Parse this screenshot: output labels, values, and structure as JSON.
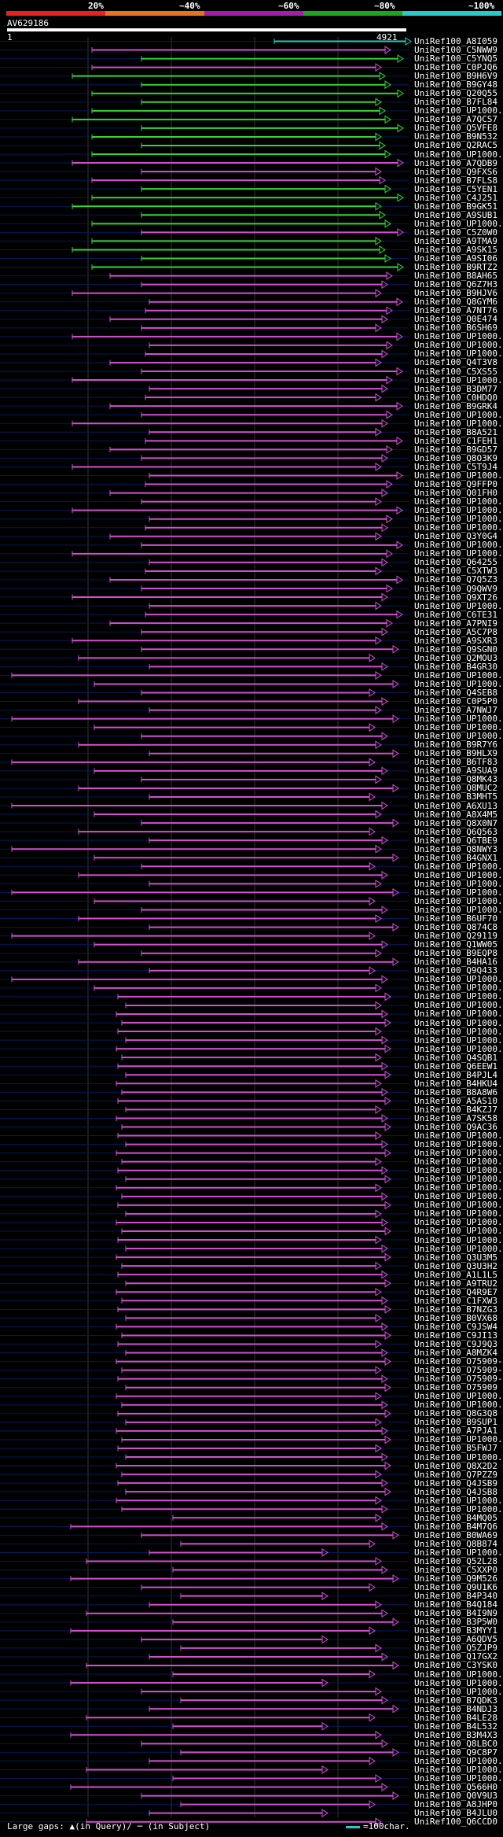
{
  "legend": {
    "labels": [
      "20%",
      "~40%",
      "~60%",
      "~80%",
      "~100%"
    ],
    "colors": [
      "#e8211e",
      "#e8721e",
      "#a21eaa",
      "#1ea41e",
      "#29c9c9"
    ]
  },
  "query": {
    "title": "AV629186",
    "start": "1",
    "end": "4921"
  },
  "footer": {
    "gaps_text": "Large gaps: ▲(in Query)/ ─ (in Subject)",
    "scale_text": "=100char."
  },
  "colors": {
    "magenta": "#d24fd2",
    "green": "#33d633",
    "cyan": "#29c9c9",
    "gap": "#ffffff",
    "grid": "#333333",
    "band": "#001a5a"
  },
  "hits": [
    {
      "id": "UniRef100_A8I059",
      "color": "cyan"
    },
    {
      "id": "UniRef100_C5NWW9",
      "color": "magenta"
    },
    {
      "id": "UniRef100_C5YNQ5",
      "color": "green"
    },
    {
      "id": "UniRef100_C0PJQ6",
      "color": "magenta"
    },
    {
      "id": "UniRef100_B9H6V9",
      "color": "green"
    },
    {
      "id": "UniRef100_B9GY48",
      "color": "green"
    },
    {
      "id": "UniRef100_Q20Q55",
      "color": "green"
    },
    {
      "id": "UniRef100_B7FL84",
      "color": "green"
    },
    {
      "id": "UniRef100_UP1000...",
      "color": "green"
    },
    {
      "id": "UniRef100_A7QCS7",
      "color": "green"
    },
    {
      "id": "UniRef100_Q5VFE8",
      "color": "green"
    },
    {
      "id": "UniRef100_B9N532",
      "color": "green"
    },
    {
      "id": "UniRef100_Q2RAC5",
      "color": "green"
    },
    {
      "id": "UniRef100_UP1000...",
      "color": "green"
    },
    {
      "id": "UniRef100_A7QDB9",
      "color": "magenta"
    },
    {
      "id": "UniRef100_Q9FXS6",
      "color": "magenta"
    },
    {
      "id": "UniRef100_B7FLS8",
      "color": "magenta"
    },
    {
      "id": "UniRef100_C5YEN1",
      "color": "green"
    },
    {
      "id": "UniRef100_C4J251",
      "color": "green"
    },
    {
      "id": "UniRef100_B9GK51",
      "color": "green"
    },
    {
      "id": "UniRef100_A9SUB1",
      "color": "green"
    },
    {
      "id": "UniRef100_UP1000...",
      "color": "green"
    },
    {
      "id": "UniRef100_C5Z0W0",
      "color": "magenta"
    },
    {
      "id": "UniRef100_A9TMA9",
      "color": "green"
    },
    {
      "id": "UniRef100_A9SK15",
      "color": "green"
    },
    {
      "id": "UniRef100_A9SI06",
      "color": "green"
    },
    {
      "id": "UniRef100_B9RTZ2",
      "color": "green"
    },
    {
      "id": "UniRef100_B8AH65",
      "color": "magenta"
    },
    {
      "id": "UniRef100_Q6Z7H3",
      "color": "magenta"
    },
    {
      "id": "UniRef100_B9HJV6",
      "color": "magenta"
    },
    {
      "id": "UniRef100_Q8GYM6",
      "color": "magenta"
    },
    {
      "id": "UniRef100_A7NT76",
      "color": "magenta"
    },
    {
      "id": "UniRef100_Q0E474",
      "color": "magenta"
    },
    {
      "id": "UniRef100_B6SH69",
      "color": "magenta"
    },
    {
      "id": "UniRef100_UP1000...",
      "color": "magenta"
    },
    {
      "id": "UniRef100_UP1000...",
      "color": "magenta"
    },
    {
      "id": "UniRef100_UP1000...",
      "color": "magenta"
    },
    {
      "id": "UniRef100_Q4T3V8",
      "color": "magenta"
    },
    {
      "id": "UniRef100_C5XS55",
      "color": "magenta"
    },
    {
      "id": "UniRef100_UP1000...",
      "color": "magenta"
    },
    {
      "id": "UniRef100_B3DM77",
      "color": "magenta"
    },
    {
      "id": "UniRef100_C0HDQ0",
      "color": "magenta"
    },
    {
      "id": "UniRef100_B9GRK4",
      "color": "magenta"
    },
    {
      "id": "UniRef100_UP1000...",
      "color": "magenta"
    },
    {
      "id": "UniRef100_UP1000...",
      "color": "magenta"
    },
    {
      "id": "UniRef100_B8A521",
      "color": "magenta"
    },
    {
      "id": "UniRef100_C1FEH1",
      "color": "magenta"
    },
    {
      "id": "UniRef100_B9GD57",
      "color": "magenta"
    },
    {
      "id": "UniRef100_Q8O3K9",
      "color": "magenta"
    },
    {
      "id": "UniRef100_C5T9J4",
      "color": "magenta"
    },
    {
      "id": "UniRef100_UP1000...",
      "color": "magenta"
    },
    {
      "id": "UniRef100_Q9FFP0",
      "color": "magenta"
    },
    {
      "id": "UniRef100_Q01FH0",
      "color": "magenta"
    },
    {
      "id": "UniRef100_UP1000...",
      "color": "magenta"
    },
    {
      "id": "UniRef100_UP1000...",
      "color": "magenta"
    },
    {
      "id": "UniRef100_UP1000...",
      "color": "magenta"
    },
    {
      "id": "UniRef100_UP1000...",
      "color": "magenta"
    },
    {
      "id": "UniRef100_Q3Y0G4",
      "color": "magenta"
    },
    {
      "id": "UniRef100_UP1000...",
      "color": "magenta"
    },
    {
      "id": "UniRef100_UP1000...",
      "color": "magenta"
    },
    {
      "id": "UniRef100_Q64255",
      "color": "magenta"
    },
    {
      "id": "UniRef100_C5XTW3",
      "color": "magenta"
    },
    {
      "id": "UniRef100_Q7Q5Z3",
      "color": "magenta"
    },
    {
      "id": "UniRef100_Q9QWV9",
      "color": "magenta"
    },
    {
      "id": "UniRef100_Q9XT26",
      "color": "magenta"
    },
    {
      "id": "UniRef100_UP1000...",
      "color": "magenta"
    },
    {
      "id": "UniRef100_C6TE31",
      "color": "magenta"
    },
    {
      "id": "UniRef100_A7PNI9",
      "color": "magenta"
    },
    {
      "id": "UniRef100_A5C7P8",
      "color": "magenta"
    },
    {
      "id": "UniRef100_A9SXR3",
      "color": "magenta"
    },
    {
      "id": "UniRef100_Q9SGN0",
      "color": "magenta"
    },
    {
      "id": "UniRef100_Q2MOU3",
      "color": "magenta"
    },
    {
      "id": "UniRef100_B4GR30",
      "color": "magenta"
    },
    {
      "id": "UniRef100_UP1000...",
      "color": "magenta"
    },
    {
      "id": "UniRef100_UP1000...",
      "color": "magenta"
    },
    {
      "id": "UniRef100_Q4SEB8",
      "color": "magenta"
    },
    {
      "id": "UniRef100_C0P5P0",
      "color": "magenta"
    },
    {
      "id": "UniRef100_A7NWJ7",
      "color": "magenta"
    },
    {
      "id": "UniRef100_UP1000...",
      "color": "magenta"
    },
    {
      "id": "UniRef100_UP1000...",
      "color": "magenta"
    },
    {
      "id": "UniRef100_UP1000...",
      "color": "magenta"
    },
    {
      "id": "UniRef100_B9R7Y6",
      "color": "magenta"
    },
    {
      "id": "UniRef100_B9HLX9",
      "color": "magenta"
    },
    {
      "id": "UniRef100_B6TF83",
      "color": "magenta"
    },
    {
      "id": "UniRef100_A9SUA9",
      "color": "magenta"
    },
    {
      "id": "UniRef100_Q8MK43",
      "color": "magenta"
    },
    {
      "id": "UniRef100_Q8MUC2",
      "color": "magenta"
    },
    {
      "id": "UniRef100_B3MHT5",
      "color": "magenta"
    },
    {
      "id": "UniRef100_A6XU13",
      "color": "magenta"
    },
    {
      "id": "UniRef100_A8X4M5",
      "color": "magenta"
    },
    {
      "id": "UniRef100_Q8X0N7",
      "color": "magenta"
    },
    {
      "id": "UniRef100_Q6Q563",
      "color": "magenta"
    },
    {
      "id": "UniRef100_Q6TBE9",
      "color": "magenta"
    },
    {
      "id": "UniRef100_Q8NWY3",
      "color": "magenta"
    },
    {
      "id": "UniRef100_B4GNX1",
      "color": "magenta"
    },
    {
      "id": "UniRef100_UP1000...",
      "color": "magenta"
    },
    {
      "id": "UniRef100_UP1000...",
      "color": "magenta"
    },
    {
      "id": "UniRef100_UP1000...",
      "color": "magenta"
    },
    {
      "id": "UniRef100_UP1000...",
      "color": "magenta"
    },
    {
      "id": "UniRef100_UP1000...",
      "color": "magenta"
    },
    {
      "id": "UniRef100_UP1000...",
      "color": "magenta"
    },
    {
      "id": "UniRef100_B6UF70",
      "color": "magenta"
    },
    {
      "id": "UniRef100_Q874C8",
      "color": "magenta"
    },
    {
      "id": "UniRef100_Q29119",
      "color": "magenta"
    },
    {
      "id": "UniRef100_Q1WW05",
      "color": "magenta"
    },
    {
      "id": "UniRef100_B9EQP8",
      "color": "magenta"
    },
    {
      "id": "UniRef100_B4HA16",
      "color": "magenta"
    },
    {
      "id": "UniRef100_Q9Q433",
      "color": "magenta"
    },
    {
      "id": "UniRef100_UP1000...",
      "color": "magenta"
    },
    {
      "id": "UniRef100_UP1000...",
      "color": "magenta"
    },
    {
      "id": "UniRef100_UP1000...",
      "color": "magenta"
    },
    {
      "id": "UniRef100_UP1000...",
      "color": "magenta"
    },
    {
      "id": "UniRef100_UP1000...",
      "color": "magenta"
    },
    {
      "id": "UniRef100_UP1000...",
      "color": "magenta"
    },
    {
      "id": "UniRef100_UP1000...",
      "color": "magenta"
    },
    {
      "id": "UniRef100_UP1000...",
      "color": "magenta"
    },
    {
      "id": "UniRef100_UP1000...",
      "color": "magenta"
    },
    {
      "id": "UniRef100_Q4SQB1",
      "color": "magenta"
    },
    {
      "id": "UniRef100_Q6EEW1",
      "color": "magenta"
    },
    {
      "id": "UniRef100_B4PJL4",
      "color": "magenta"
    },
    {
      "id": "UniRef100_B4HKU4",
      "color": "magenta"
    },
    {
      "id": "UniRef100_B8A8W6",
      "color": "magenta"
    },
    {
      "id": "UniRef100_A5AS10",
      "color": "magenta"
    },
    {
      "id": "UniRef100_B4KZJ7",
      "color": "magenta"
    },
    {
      "id": "UniRef100_A7SK58",
      "color": "magenta"
    },
    {
      "id": "UniRef100_Q9AC36",
      "color": "magenta"
    },
    {
      "id": "UniRef100_UP1000...",
      "color": "magenta"
    },
    {
      "id": "UniRef100_UP1000...",
      "color": "magenta"
    },
    {
      "id": "UniRef100_UP1000...",
      "color": "magenta"
    },
    {
      "id": "UniRef100_UP1000...",
      "color": "magenta"
    },
    {
      "id": "UniRef100_UP1000...",
      "color": "magenta"
    },
    {
      "id": "UniRef100_UP1000...",
      "color": "magenta"
    },
    {
      "id": "UniRef100_UP1000...",
      "color": "magenta"
    },
    {
      "id": "UniRef100_UP1000...",
      "color": "magenta"
    },
    {
      "id": "UniRef100_UP1000...",
      "color": "magenta"
    },
    {
      "id": "UniRef100_UP1000...",
      "color": "magenta"
    },
    {
      "id": "UniRef100_UP1000...",
      "color": "magenta"
    },
    {
      "id": "UniRef100_UP1000...",
      "color": "magenta"
    },
    {
      "id": "UniRef100_UP1000...",
      "color": "magenta"
    },
    {
      "id": "UniRef100_UP1000...",
      "color": "magenta"
    },
    {
      "id": "UniRef100_Q3U3M5",
      "color": "magenta"
    },
    {
      "id": "UniRef100_Q3U3H2",
      "color": "magenta"
    },
    {
      "id": "UniRef100_A1L1L5",
      "color": "magenta"
    },
    {
      "id": "UniRef100_A9TRU2",
      "color": "magenta"
    },
    {
      "id": "UniRef100_Q4R9E7",
      "color": "magenta"
    },
    {
      "id": "UniRef100_C1FXW3",
      "color": "magenta"
    },
    {
      "id": "UniRef100_B7NZG3",
      "color": "magenta"
    },
    {
      "id": "UniRef100_B0VX68",
      "color": "magenta"
    },
    {
      "id": "UniRef100_C9JSW4",
      "color": "magenta"
    },
    {
      "id": "UniRef100_C9JI13",
      "color": "magenta"
    },
    {
      "id": "UniRef100_C9J9Q3",
      "color": "magenta"
    },
    {
      "id": "UniRef100_A8MZK4",
      "color": "magenta"
    },
    {
      "id": "UniRef100_O75909-2",
      "color": "magenta"
    },
    {
      "id": "UniRef100_O75909-1",
      "color": "magenta"
    },
    {
      "id": "UniRef100_O75909-4",
      "color": "magenta"
    },
    {
      "id": "UniRef100_O75909",
      "color": "magenta"
    },
    {
      "id": "UniRef100_UP1000...",
      "color": "magenta"
    },
    {
      "id": "UniRef100_UP1000...",
      "color": "magenta"
    },
    {
      "id": "UniRef100_Q8G3Q8",
      "color": "magenta"
    },
    {
      "id": "UniRef100_B9SUP1",
      "color": "magenta"
    },
    {
      "id": "UniRef100_A7PJA1",
      "color": "magenta"
    },
    {
      "id": "UniRef100_UP1000...",
      "color": "magenta"
    },
    {
      "id": "UniRef100_B5FWJ7",
      "color": "magenta"
    },
    {
      "id": "UniRef100_UP1000...",
      "color": "magenta"
    },
    {
      "id": "UniRef100_Q8X2D2",
      "color": "magenta"
    },
    {
      "id": "UniRef100_Q7PZZ9",
      "color": "magenta"
    },
    {
      "id": "UniRef100_Q4JSB9",
      "color": "magenta"
    },
    {
      "id": "UniRef100_Q4JSB8",
      "color": "magenta"
    },
    {
      "id": "UniRef100_UP1000...",
      "color": "magenta"
    },
    {
      "id": "UniRef100_UP1000...",
      "color": "magenta"
    },
    {
      "id": "UniRef100_B4MQ05",
      "color": "magenta"
    },
    {
      "id": "UniRef100_B4M7Q6",
      "color": "magenta"
    },
    {
      "id": "UniRef100_B0WA69",
      "color": "magenta"
    },
    {
      "id": "UniRef100_Q8B874",
      "color": "magenta"
    },
    {
      "id": "UniRef100_UP1000...",
      "color": "magenta"
    },
    {
      "id": "UniRef100_Q52L28",
      "color": "magenta"
    },
    {
      "id": "UniRef100_C5XXP0",
      "color": "magenta"
    },
    {
      "id": "UniRef100_Q9M526",
      "color": "magenta"
    },
    {
      "id": "UniRef100_Q9U1K6",
      "color": "magenta"
    },
    {
      "id": "UniRef100_B4P340",
      "color": "magenta"
    },
    {
      "id": "UniRef100_B4Q184",
      "color": "magenta"
    },
    {
      "id": "UniRef100_B4I9N9",
      "color": "magenta"
    },
    {
      "id": "UniRef100_B3P5W0",
      "color": "magenta"
    },
    {
      "id": "UniRef100_B3MYY1",
      "color": "magenta"
    },
    {
      "id": "UniRef100_A6QDV5",
      "color": "magenta"
    },
    {
      "id": "UniRef100_Q5ZJP9",
      "color": "magenta"
    },
    {
      "id": "UniRef100_Q17GX2",
      "color": "magenta"
    },
    {
      "id": "UniRef100_C3YSK0",
      "color": "magenta"
    },
    {
      "id": "UniRef100_UP1000...",
      "color": "magenta"
    },
    {
      "id": "UniRef100_UP1000...",
      "color": "magenta"
    },
    {
      "id": "UniRef100_UP1000...",
      "color": "magenta"
    },
    {
      "id": "UniRef100_B7QDK3",
      "color": "magenta"
    },
    {
      "id": "UniRef100_B4NDJ3",
      "color": "magenta"
    },
    {
      "id": "UniRef100_B4LE28",
      "color": "magenta"
    },
    {
      "id": "UniRef100_B4L532",
      "color": "magenta"
    },
    {
      "id": "UniRef100_B3M4X3",
      "color": "magenta"
    },
    {
      "id": "UniRef100_Q8LBC0",
      "color": "magenta"
    },
    {
      "id": "UniRef100_Q9C8P7",
      "color": "magenta"
    },
    {
      "id": "UniRef100_UP1000...",
      "color": "magenta"
    },
    {
      "id": "UniRef100_UP1000...",
      "color": "magenta"
    },
    {
      "id": "UniRef100_UP1000...",
      "color": "magenta"
    },
    {
      "id": "UniRef100_Q566H0",
      "color": "magenta"
    },
    {
      "id": "UniRef100_Q0V9U3",
      "color": "magenta"
    },
    {
      "id": "UniRef100_A8JHP0",
      "color": "magenta"
    },
    {
      "id": "UniRef100_B4JLU0",
      "color": "magenta"
    },
    {
      "id": "UniRef100_Q6CCD0",
      "color": "magenta"
    }
  ]
}
